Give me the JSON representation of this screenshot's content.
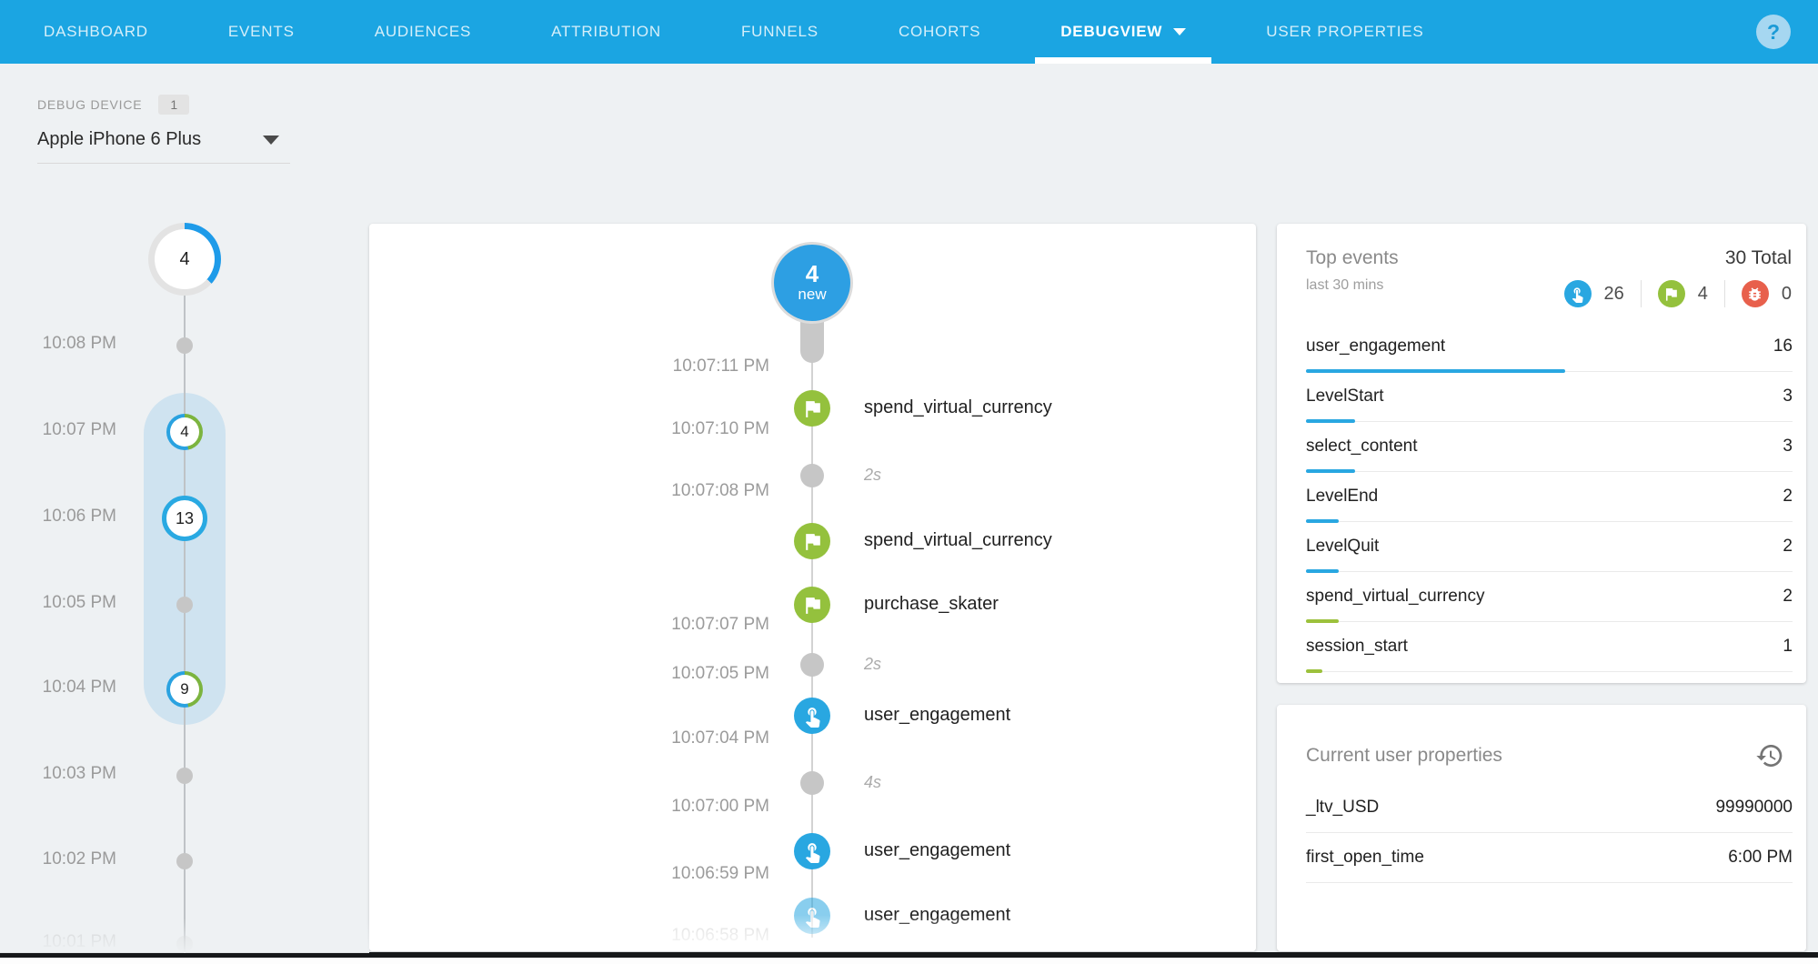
{
  "colors": {
    "nav_blue": "#1ba5e2",
    "accent_blue": "#29a7e1",
    "accent_green": "#9cc13c",
    "accent_orange": "#e8604c",
    "capsule_blue": "#cfe3f0"
  },
  "nav": {
    "tabs": [
      {
        "label": "DASHBOARD",
        "active": false
      },
      {
        "label": "EVENTS",
        "active": false
      },
      {
        "label": "AUDIENCES",
        "active": false
      },
      {
        "label": "ATTRIBUTION",
        "active": false
      },
      {
        "label": "FUNNELS",
        "active": false
      },
      {
        "label": "COHORTS",
        "active": false
      },
      {
        "label": "DEBUGVIEW",
        "active": true
      },
      {
        "label": "USER PROPERTIES",
        "active": false
      }
    ],
    "help_label": "?"
  },
  "device": {
    "label": "DEBUG DEVICE",
    "count": "1",
    "selected": "Apple iPhone 6 Plus"
  },
  "minute_timeline": {
    "summary_count": "4",
    "rows": [
      {
        "time": "10:08 PM",
        "type": "dot"
      },
      {
        "time": "10:07 PM",
        "type": "count",
        "count": "4",
        "ring": "mixed",
        "selected": true
      },
      {
        "time": "10:06 PM",
        "type": "count",
        "count": "13",
        "ring": "blue",
        "selected": true
      },
      {
        "time": "10:05 PM",
        "type": "dot",
        "selected": true
      },
      {
        "time": "10:04 PM",
        "type": "count",
        "count": "9",
        "ring": "mixed",
        "selected": true
      },
      {
        "time": "10:03 PM",
        "type": "dot"
      },
      {
        "time": "10:02 PM",
        "type": "dot"
      },
      {
        "time": "10:01 PM",
        "type": "dot",
        "faded": true
      }
    ]
  },
  "stream": {
    "badge_count": "4",
    "badge_label": "new",
    "entries": [
      {
        "type": "timestamp",
        "text": "10:07:11 PM"
      },
      {
        "type": "event",
        "icon": "flag-icon",
        "text": "spend_virtual_currency"
      },
      {
        "type": "timestamp",
        "text": "10:07:10 PM"
      },
      {
        "type": "gap",
        "text": "2s"
      },
      {
        "type": "timestamp",
        "text": "10:07:08 PM"
      },
      {
        "type": "event",
        "icon": "flag-icon",
        "text": "spend_virtual_currency"
      },
      {
        "type": "event",
        "icon": "flag-icon",
        "text": "purchase_skater"
      },
      {
        "type": "timestamp",
        "text": "10:07:07 PM"
      },
      {
        "type": "gap",
        "text": "2s"
      },
      {
        "type": "timestamp",
        "text": "10:07:05 PM"
      },
      {
        "type": "event",
        "icon": "touch-icon",
        "text": "user_engagement"
      },
      {
        "type": "timestamp",
        "text": "10:07:04 PM"
      },
      {
        "type": "gap",
        "text": "4s"
      },
      {
        "type": "timestamp",
        "text": "10:07:00 PM"
      },
      {
        "type": "event",
        "icon": "touch-icon",
        "text": "user_engagement"
      },
      {
        "type": "timestamp",
        "text": "10:06:59 PM"
      },
      {
        "type": "event",
        "icon": "touch-icon",
        "text": "user_engagement",
        "faded": true
      },
      {
        "type": "timestamp",
        "text": "10:06:58 PM",
        "faded": true
      }
    ]
  },
  "top_events": {
    "title": "Top events",
    "subtitle": "last 30 mins",
    "total": "30 Total",
    "stats": [
      {
        "icon": "touch-icon",
        "count": "26"
      },
      {
        "icon": "flag-icon",
        "count": "4"
      },
      {
        "icon": "bug-icon",
        "count": "0"
      }
    ],
    "rows": [
      {
        "name": "user_engagement",
        "count": "16",
        "pct": 53.3,
        "color": "blue"
      },
      {
        "name": "LevelStart",
        "count": "3",
        "pct": 10,
        "color": "blue"
      },
      {
        "name": "select_content",
        "count": "3",
        "pct": 10,
        "color": "blue"
      },
      {
        "name": "LevelEnd",
        "count": "2",
        "pct": 6.7,
        "color": "blue"
      },
      {
        "name": "LevelQuit",
        "count": "2",
        "pct": 6.7,
        "color": "blue"
      },
      {
        "name": "spend_virtual_currency",
        "count": "2",
        "pct": 6.7,
        "color": "green"
      },
      {
        "name": "session_start",
        "count": "1",
        "pct": 3.3,
        "color": "green"
      }
    ]
  },
  "user_properties": {
    "title": "Current user properties",
    "rows": [
      {
        "name": "_ltv_USD",
        "value": "99990000"
      },
      {
        "name": "first_open_time",
        "value": "6:00 PM"
      }
    ]
  }
}
